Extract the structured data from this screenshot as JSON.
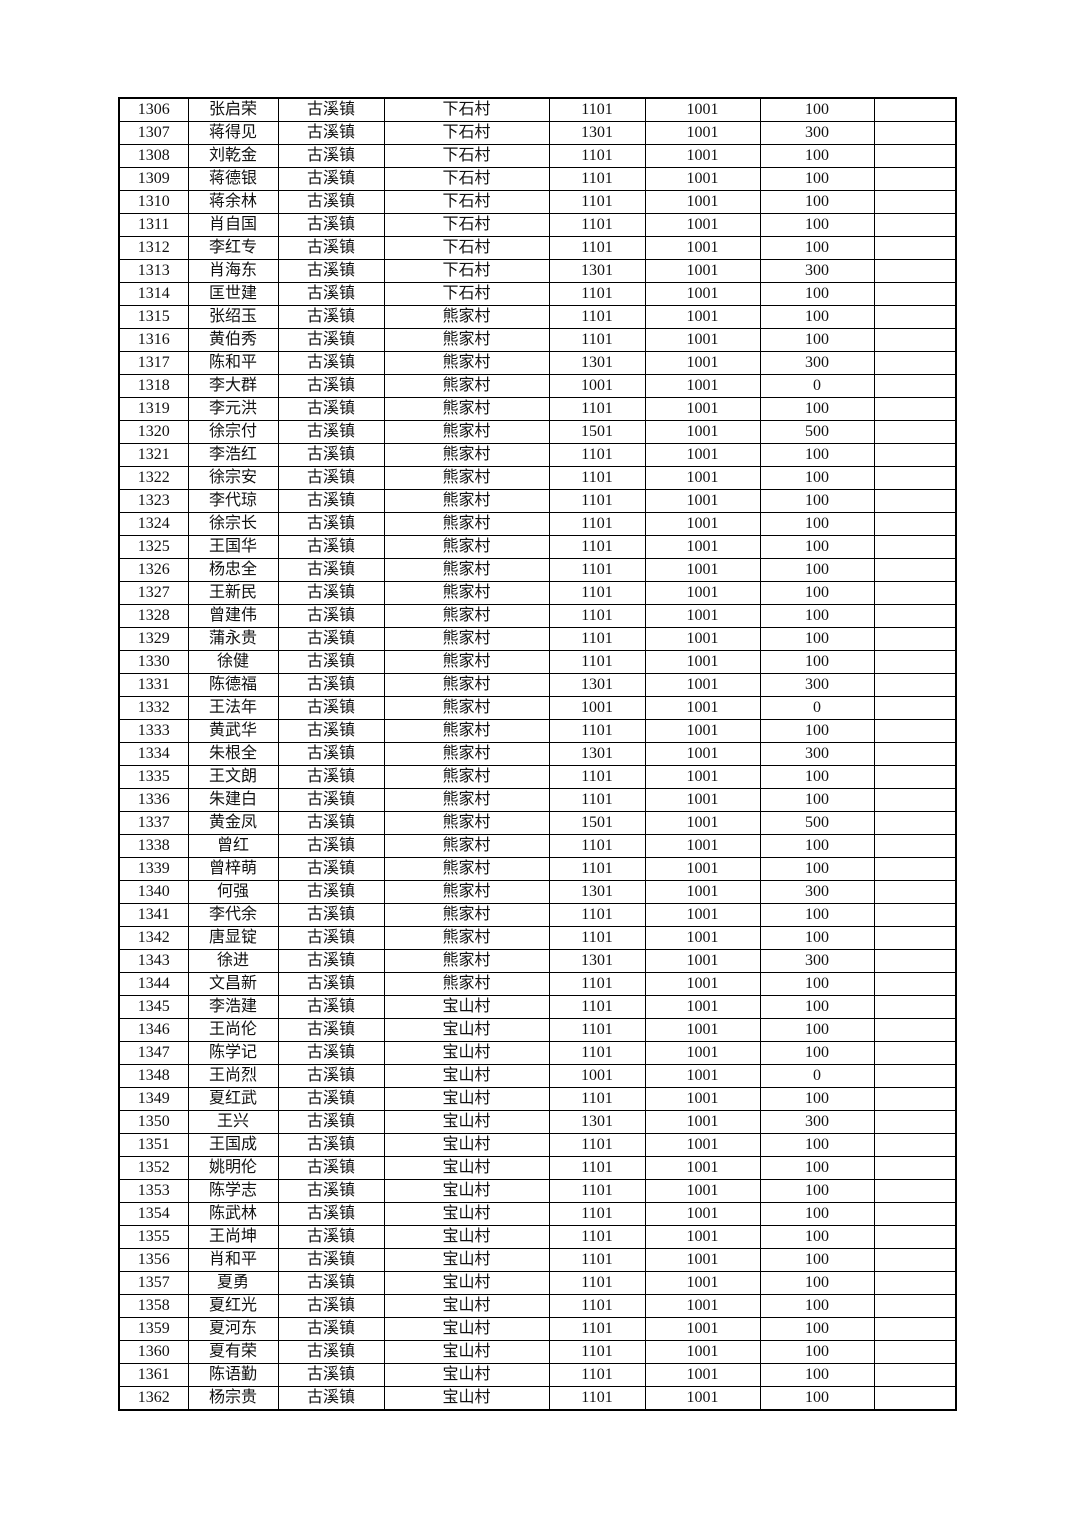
{
  "table": {
    "rows": [
      [
        "1306",
        "张启荣",
        "古溪镇",
        "下石村",
        "1101",
        "1001",
        "100"
      ],
      [
        "1307",
        "蒋得见",
        "古溪镇",
        "下石村",
        "1301",
        "1001",
        "300"
      ],
      [
        "1308",
        "刘乾金",
        "古溪镇",
        "下石村",
        "1101",
        "1001",
        "100"
      ],
      [
        "1309",
        "蒋德银",
        "古溪镇",
        "下石村",
        "1101",
        "1001",
        "100"
      ],
      [
        "1310",
        "蒋余林",
        "古溪镇",
        "下石村",
        "1101",
        "1001",
        "100"
      ],
      [
        "1311",
        "肖自国",
        "古溪镇",
        "下石村",
        "1101",
        "1001",
        "100"
      ],
      [
        "1312",
        "李红专",
        "古溪镇",
        "下石村",
        "1101",
        "1001",
        "100"
      ],
      [
        "1313",
        "肖海东",
        "古溪镇",
        "下石村",
        "1301",
        "1001",
        "300"
      ],
      [
        "1314",
        "匡世建",
        "古溪镇",
        "下石村",
        "1101",
        "1001",
        "100"
      ],
      [
        "1315",
        "张绍玉",
        "古溪镇",
        "熊家村",
        "1101",
        "1001",
        "100"
      ],
      [
        "1316",
        "黄伯秀",
        "古溪镇",
        "熊家村",
        "1101",
        "1001",
        "100"
      ],
      [
        "1317",
        "陈和平",
        "古溪镇",
        "熊家村",
        "1301",
        "1001",
        "300"
      ],
      [
        "1318",
        "李大群",
        "古溪镇",
        "熊家村",
        "1001",
        "1001",
        "0"
      ],
      [
        "1319",
        "李元洪",
        "古溪镇",
        "熊家村",
        "1101",
        "1001",
        "100"
      ],
      [
        "1320",
        "徐宗付",
        "古溪镇",
        "熊家村",
        "1501",
        "1001",
        "500"
      ],
      [
        "1321",
        "李浩红",
        "古溪镇",
        "熊家村",
        "1101",
        "1001",
        "100"
      ],
      [
        "1322",
        "徐宗安",
        "古溪镇",
        "熊家村",
        "1101",
        "1001",
        "100"
      ],
      [
        "1323",
        "李代琼",
        "古溪镇",
        "熊家村",
        "1101",
        "1001",
        "100"
      ],
      [
        "1324",
        "徐宗长",
        "古溪镇",
        "熊家村",
        "1101",
        "1001",
        "100"
      ],
      [
        "1325",
        "王国华",
        "古溪镇",
        "熊家村",
        "1101",
        "1001",
        "100"
      ],
      [
        "1326",
        "杨忠全",
        "古溪镇",
        "熊家村",
        "1101",
        "1001",
        "100"
      ],
      [
        "1327",
        "王新民",
        "古溪镇",
        "熊家村",
        "1101",
        "1001",
        "100"
      ],
      [
        "1328",
        "曾建伟",
        "古溪镇",
        "熊家村",
        "1101",
        "1001",
        "100"
      ],
      [
        "1329",
        "蒲永贵",
        "古溪镇",
        "熊家村",
        "1101",
        "1001",
        "100"
      ],
      [
        "1330",
        "徐健",
        "古溪镇",
        "熊家村",
        "1101",
        "1001",
        "100"
      ],
      [
        "1331",
        "陈德福",
        "古溪镇",
        "熊家村",
        "1301",
        "1001",
        "300"
      ],
      [
        "1332",
        "王法年",
        "古溪镇",
        "熊家村",
        "1001",
        "1001",
        "0"
      ],
      [
        "1333",
        "黄武华",
        "古溪镇",
        "熊家村",
        "1101",
        "1001",
        "100"
      ],
      [
        "1334",
        "朱根全",
        "古溪镇",
        "熊家村",
        "1301",
        "1001",
        "300"
      ],
      [
        "1335",
        "王文朗",
        "古溪镇",
        "熊家村",
        "1101",
        "1001",
        "100"
      ],
      [
        "1336",
        "朱建白",
        "古溪镇",
        "熊家村",
        "1101",
        "1001",
        "100"
      ],
      [
        "1337",
        "黄金凤",
        "古溪镇",
        "熊家村",
        "1501",
        "1001",
        "500"
      ],
      [
        "1338",
        "曾红",
        "古溪镇",
        "熊家村",
        "1101",
        "1001",
        "100"
      ],
      [
        "1339",
        "曾梓萌",
        "古溪镇",
        "熊家村",
        "1101",
        "1001",
        "100"
      ],
      [
        "1340",
        "何强",
        "古溪镇",
        "熊家村",
        "1301",
        "1001",
        "300"
      ],
      [
        "1341",
        "李代余",
        "古溪镇",
        "熊家村",
        "1101",
        "1001",
        "100"
      ],
      [
        "1342",
        "唐显锭",
        "古溪镇",
        "熊家村",
        "1101",
        "1001",
        "100"
      ],
      [
        "1343",
        "徐进",
        "古溪镇",
        "熊家村",
        "1301",
        "1001",
        "300"
      ],
      [
        "1344",
        "文昌新",
        "古溪镇",
        "熊家村",
        "1101",
        "1001",
        "100"
      ],
      [
        "1345",
        "李浩建",
        "古溪镇",
        "宝山村",
        "1101",
        "1001",
        "100"
      ],
      [
        "1346",
        "王尚伦",
        "古溪镇",
        "宝山村",
        "1101",
        "1001",
        "100"
      ],
      [
        "1347",
        "陈学记",
        "古溪镇",
        "宝山村",
        "1101",
        "1001",
        "100"
      ],
      [
        "1348",
        "王尚烈",
        "古溪镇",
        "宝山村",
        "1001",
        "1001",
        "0"
      ],
      [
        "1349",
        "夏红武",
        "古溪镇",
        "宝山村",
        "1101",
        "1001",
        "100"
      ],
      [
        "1350",
        "王兴",
        "古溪镇",
        "宝山村",
        "1301",
        "1001",
        "300"
      ],
      [
        "1351",
        "王国成",
        "古溪镇",
        "宝山村",
        "1101",
        "1001",
        "100"
      ],
      [
        "1352",
        "姚明伦",
        "古溪镇",
        "宝山村",
        "1101",
        "1001",
        "100"
      ],
      [
        "1353",
        "陈学志",
        "古溪镇",
        "宝山村",
        "1101",
        "1001",
        "100"
      ],
      [
        "1354",
        "陈武林",
        "古溪镇",
        "宝山村",
        "1101",
        "1001",
        "100"
      ],
      [
        "1355",
        "王尚坤",
        "古溪镇",
        "宝山村",
        "1101",
        "1001",
        "100"
      ],
      [
        "1356",
        "肖和平",
        "古溪镇",
        "宝山村",
        "1101",
        "1001",
        "100"
      ],
      [
        "1357",
        "夏勇",
        "古溪镇",
        "宝山村",
        "1101",
        "1001",
        "100"
      ],
      [
        "1358",
        "夏红光",
        "古溪镇",
        "宝山村",
        "1101",
        "1001",
        "100"
      ],
      [
        "1359",
        "夏河东",
        "古溪镇",
        "宝山村",
        "1101",
        "1001",
        "100"
      ],
      [
        "1360",
        "夏有荣",
        "古溪镇",
        "宝山村",
        "1101",
        "1001",
        "100"
      ],
      [
        "1361",
        "陈语勤",
        "古溪镇",
        "宝山村",
        "1101",
        "1001",
        "100"
      ],
      [
        "1362",
        "杨宗贵",
        "古溪镇",
        "宝山村",
        "1101",
        "1001",
        "100"
      ]
    ]
  }
}
